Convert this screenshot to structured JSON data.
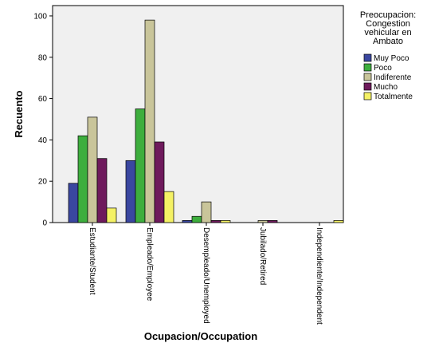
{
  "chart_data": {
    "type": "bar",
    "xlabel": "Ocupacion/Occupation",
    "ylabel": "Recuento",
    "ylim": [
      0,
      105
    ],
    "yticks": [
      0,
      20,
      40,
      60,
      80,
      100
    ],
    "grid": false,
    "categories": [
      "Estudiante/Student",
      "Empleado/Employee",
      "Desempleado/Unemployed",
      "Jubilado/Retired",
      "Independiente/Independent"
    ],
    "legend": {
      "title_lines": [
        "Preocupacion:",
        "Congestion",
        "vehicular en",
        "Ambato"
      ],
      "placement": "right"
    },
    "series": [
      {
        "name": "Muy Poco",
        "color": "#3a47a0",
        "values": [
          19,
          30,
          1,
          0,
          0
        ]
      },
      {
        "name": "Poco",
        "color": "#3dae3d",
        "values": [
          42,
          55,
          3,
          0,
          0
        ]
      },
      {
        "name": "Indiferente",
        "color": "#c9c59a",
        "values": [
          51,
          98,
          10,
          1,
          0
        ]
      },
      {
        "name": "Mucho",
        "color": "#6e1a5c",
        "values": [
          31,
          39,
          1,
          1,
          0
        ]
      },
      {
        "name": "Totalmente",
        "color": "#f4f165",
        "values": [
          7,
          15,
          1,
          0,
          1
        ]
      }
    ]
  }
}
